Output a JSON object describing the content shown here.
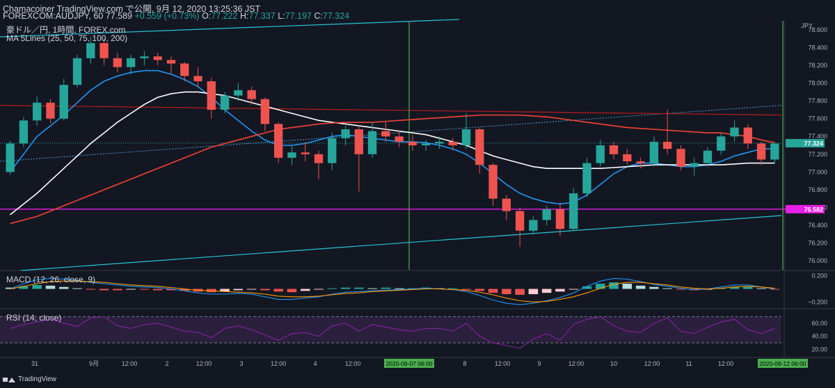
{
  "header": {
    "line1": "Chamacoiner TradingView.com で公開, 9月 12, 2020 13:25:36 JST",
    "symbol": "FOREXCOM:AUDJPY, 60",
    "last": "77.589",
    "change": "+0.559 (+0.73%)",
    "o_label": "O:",
    "o_val": "77.222",
    "h_label": "H:",
    "h_val": "77.337",
    "l_label": "L:",
    "l_val": "77.197",
    "c_label": "C:",
    "c_val": "77.324"
  },
  "legend": {
    "instrument": "豪ドル／円, 1時間, FOREX.com",
    "ma": "MA 5Lines (25, 50, 75, 100, 200)"
  },
  "panes": {
    "macd_label": "MACD (12, 26, close, 9)",
    "rsi_label": "RSI (14, close)"
  },
  "footer": {
    "brand": "TradingView"
  },
  "colors": {
    "background": "#131722",
    "up": "#26a69a",
    "down": "#ef5350",
    "ma_blue": "#2196f3",
    "ma_white": "#ffffff",
    "ma_red": "#f44336",
    "support_magenta": "#e91ee9",
    "channel_teal": "#26c6da",
    "vline_green": "#4caf50",
    "rsi_purple": "#9c27b0"
  },
  "chart_data": [
    {
      "type": "candlestick",
      "pane": "price",
      "currency_label": "JPY",
      "ylim": [
        75.9,
        78.7
      ],
      "y_ticks": [
        "78.600",
        "78.400",
        "78.200",
        "78.000",
        "77.800",
        "77.600",
        "77.400",
        "77.200",
        "77.000",
        "76.800",
        "76.600",
        "76.400",
        "76.200",
        "76.000"
      ],
      "x_ticks": [
        "31",
        "9月",
        "12:00",
        "2",
        "12:00",
        "3",
        "12:00",
        "4",
        "12:00",
        "2020-09-07 06:00",
        "8",
        "12:00",
        "9",
        "12:00",
        "10",
        "12:00",
        "11",
        "12:00",
        "2020-09-12 06:00"
      ],
      "price_labels": {
        "last": "77.324",
        "support": "76.582"
      },
      "horizontal_levels": {
        "support": 76.582,
        "resistance": 77.75
      },
      "ohlc_hourly": [
        [
          77.0,
          77.35,
          76.97,
          77.32
        ],
        [
          77.32,
          77.62,
          77.28,
          77.58
        ],
        [
          77.58,
          77.85,
          77.52,
          77.78
        ],
        [
          77.78,
          77.82,
          77.55,
          77.6
        ],
        [
          77.6,
          78.05,
          77.58,
          77.98
        ],
        [
          77.98,
          78.32,
          77.95,
          78.28
        ],
        [
          78.28,
          78.52,
          78.22,
          78.45
        ],
        [
          78.45,
          78.5,
          78.2,
          78.28
        ],
        [
          78.28,
          78.34,
          78.12,
          78.18
        ],
        [
          78.18,
          78.32,
          78.1,
          78.28
        ],
        [
          78.28,
          78.36,
          78.2,
          78.3
        ],
        [
          78.3,
          78.34,
          78.2,
          78.26
        ],
        [
          78.26,
          78.3,
          78.1,
          78.22
        ],
        [
          78.22,
          78.24,
          78.02,
          78.08
        ],
        [
          78.08,
          78.18,
          77.96,
          78.02
        ],
        [
          78.02,
          78.06,
          77.6,
          77.7
        ],
        [
          77.7,
          77.9,
          77.66,
          77.86
        ],
        [
          77.86,
          78.0,
          77.8,
          77.92
        ],
        [
          77.92,
          77.96,
          77.76,
          77.82
        ],
        [
          77.82,
          77.84,
          77.46,
          77.54
        ],
        [
          77.54,
          77.56,
          77.1,
          77.16
        ],
        [
          77.16,
          77.3,
          77.08,
          77.22
        ],
        [
          77.22,
          77.34,
          77.12,
          77.2
        ],
        [
          77.2,
          77.24,
          76.92,
          77.1
        ],
        [
          77.1,
          77.44,
          77.02,
          77.38
        ],
        [
          77.38,
          77.52,
          77.3,
          77.48
        ],
        [
          77.48,
          77.52,
          76.78,
          77.2
        ],
        [
          77.2,
          77.56,
          77.16,
          77.46
        ],
        [
          77.46,
          77.56,
          77.34,
          77.4
        ],
        [
          77.4,
          77.46,
          77.28,
          77.34
        ],
        [
          77.34,
          77.42,
          77.24,
          77.3
        ],
        [
          77.3,
          77.36,
          77.24,
          77.32
        ],
        [
          77.32,
          77.4,
          77.26,
          77.34
        ],
        [
          77.34,
          77.38,
          77.24,
          77.3
        ],
        [
          77.3,
          77.66,
          77.26,
          77.48
        ],
        [
          77.48,
          77.5,
          76.98,
          77.08
        ],
        [
          77.08,
          77.1,
          76.62,
          76.7
        ],
        [
          76.7,
          76.74,
          76.46,
          76.56
        ],
        [
          76.56,
          76.6,
          76.16,
          76.34
        ],
        [
          76.34,
          76.5,
          76.3,
          76.46
        ],
        [
          76.46,
          76.62,
          76.4,
          76.58
        ],
        [
          76.58,
          76.66,
          76.28,
          76.36
        ],
        [
          76.36,
          76.82,
          76.34,
          76.76
        ],
        [
          76.76,
          77.16,
          76.72,
          77.1
        ],
        [
          77.1,
          77.36,
          77.06,
          77.3
        ],
        [
          77.3,
          77.34,
          77.14,
          77.2
        ],
        [
          77.2,
          77.26,
          77.08,
          77.12
        ],
        [
          77.12,
          77.16,
          77.04,
          77.1
        ],
        [
          77.1,
          77.4,
          77.06,
          77.34
        ],
        [
          77.34,
          77.7,
          77.2,
          77.26
        ],
        [
          77.26,
          77.3,
          77.02,
          77.06
        ],
        [
          77.06,
          77.16,
          76.96,
          77.1
        ],
        [
          77.1,
          77.28,
          77.06,
          77.24
        ],
        [
          77.24,
          77.44,
          77.2,
          77.4
        ],
        [
          77.4,
          77.58,
          77.34,
          77.5
        ],
        [
          77.5,
          77.54,
          77.26,
          77.32
        ],
        [
          77.32,
          77.34,
          77.08,
          77.14
        ],
        [
          77.14,
          77.34,
          77.1,
          77.32
        ]
      ],
      "series": [
        {
          "name": "MA 25",
          "color": "blue",
          "values": [
            77.0,
            77.2,
            77.4,
            77.52,
            77.64,
            77.78,
            77.92,
            78.02,
            78.08,
            78.12,
            78.14,
            78.14,
            78.1,
            78.04,
            77.96,
            77.84,
            77.7,
            77.58,
            77.46,
            77.36,
            77.3,
            77.3,
            77.32,
            77.36,
            77.4,
            77.42,
            77.4,
            77.38,
            77.36,
            77.34,
            77.34,
            77.33,
            77.3,
            77.26,
            77.2,
            77.1,
            76.98,
            76.86,
            76.76,
            76.7,
            76.66,
            76.64,
            76.66,
            76.74,
            76.86,
            76.98,
            77.06,
            77.1,
            77.1,
            77.08,
            77.06,
            77.06,
            77.08,
            77.12,
            77.18,
            77.22,
            77.26,
            77.26
          ]
        },
        {
          "name": "MA 100",
          "color": "white",
          "values": [
            76.52,
            76.64,
            76.76,
            76.9,
            77.04,
            77.18,
            77.32,
            77.44,
            77.56,
            77.66,
            77.76,
            77.84,
            77.88,
            77.9,
            77.9,
            77.88,
            77.86,
            77.82,
            77.78,
            77.74,
            77.7,
            77.66,
            77.62,
            77.58,
            77.56,
            77.54,
            77.52,
            77.5,
            77.48,
            77.46,
            77.44,
            77.42,
            77.38,
            77.34,
            77.3,
            77.24,
            77.18,
            77.14,
            77.1,
            77.06,
            77.04,
            77.04,
            77.04,
            77.04,
            77.04,
            77.05,
            77.06,
            77.07,
            77.08,
            77.08,
            77.08,
            77.08,
            77.08,
            77.08,
            77.09,
            77.1,
            77.1,
            77.1
          ]
        },
        {
          "name": "MA 200",
          "color": "red",
          "values": [
            76.42,
            76.46,
            76.5,
            76.56,
            76.62,
            76.68,
            76.74,
            76.8,
            76.86,
            76.92,
            76.98,
            77.04,
            77.1,
            77.16,
            77.22,
            77.28,
            77.32,
            77.36,
            77.4,
            77.44,
            77.48,
            77.5,
            77.52,
            77.54,
            77.55,
            77.56,
            77.56,
            77.56,
            77.57,
            77.58,
            77.59,
            77.6,
            77.61,
            77.62,
            77.63,
            77.64,
            77.64,
            77.64,
            77.64,
            77.63,
            77.62,
            77.6,
            77.58,
            77.56,
            77.54,
            77.52,
            77.5,
            77.49,
            77.48,
            77.47,
            77.46,
            77.45,
            77.44,
            77.44,
            77.42,
            77.4,
            77.36,
            77.33
          ]
        }
      ]
    },
    {
      "type": "bar+line",
      "pane": "macd",
      "title": "MACD (12, 26, close, 9)",
      "ylim": [
        -0.26,
        0.26
      ],
      "y_ticks": [
        "0.200",
        "−0.200"
      ],
      "histogram": [
        0.02,
        0.04,
        0.06,
        0.05,
        0.03,
        0.01,
        -0.01,
        -0.02,
        -0.02,
        -0.01,
        -0.01,
        -0.02,
        -0.02,
        -0.03,
        -0.04,
        -0.05,
        -0.04,
        -0.02,
        -0.01,
        -0.02,
        -0.04,
        -0.05,
        -0.03,
        -0.01,
        0.01,
        0.02,
        0.02,
        0.01,
        0.02,
        0.01,
        0.01,
        0.02,
        0.01,
        0.01,
        -0.01,
        -0.03,
        -0.06,
        -0.08,
        -0.09,
        -0.08,
        -0.06,
        -0.04,
        -0.01,
        0.04,
        0.08,
        0.1,
        0.08,
        0.05,
        0.03,
        0.01,
        -0.01,
        -0.02,
        -0.01,
        0.01,
        0.03,
        0.03,
        0.01,
        -0.01
      ],
      "series": [
        {
          "name": "MACD",
          "color": "blue",
          "values": [
            0.0,
            0.08,
            0.14,
            0.16,
            0.15,
            0.13,
            0.1,
            0.08,
            0.06,
            0.04,
            0.03,
            0.02,
            0.0,
            -0.03,
            -0.06,
            -0.08,
            -0.08,
            -0.07,
            -0.08,
            -0.12,
            -0.16,
            -0.16,
            -0.14,
            -0.12,
            -0.08,
            -0.05,
            -0.04,
            -0.03,
            -0.02,
            -0.01,
            0.0,
            0.01,
            0.0,
            -0.01,
            -0.04,
            -0.1,
            -0.17,
            -0.22,
            -0.24,
            -0.22,
            -0.18,
            -0.13,
            -0.06,
            0.04,
            0.12,
            0.16,
            0.15,
            0.11,
            0.07,
            0.04,
            0.01,
            -0.01,
            0.0,
            0.03,
            0.06,
            0.06,
            0.03,
            0.0
          ]
        },
        {
          "name": "Signal",
          "color": "orange",
          "values": [
            0.0,
            0.04,
            0.08,
            0.11,
            0.12,
            0.12,
            0.11,
            0.1,
            0.08,
            0.06,
            0.05,
            0.04,
            0.02,
            0.0,
            -0.02,
            -0.03,
            -0.04,
            -0.05,
            -0.06,
            -0.08,
            -0.11,
            -0.12,
            -0.12,
            -0.11,
            -0.09,
            -0.07,
            -0.06,
            -0.04,
            -0.03,
            -0.02,
            -0.01,
            0.0,
            0.0,
            -0.01,
            -0.02,
            -0.05,
            -0.09,
            -0.14,
            -0.18,
            -0.2,
            -0.19,
            -0.16,
            -0.12,
            -0.06,
            0.01,
            0.07,
            0.1,
            0.1,
            0.08,
            0.06,
            0.03,
            0.01,
            0.0,
            0.01,
            0.03,
            0.04,
            0.03,
            0.01
          ]
        }
      ]
    },
    {
      "type": "line",
      "pane": "rsi",
      "title": "RSI (14, close)",
      "ylim": [
        10,
        80
      ],
      "y_ticks": [
        "60.00",
        "40.00",
        "20.00"
      ],
      "bands": [
        70,
        30
      ],
      "series": [
        {
          "name": "RSI",
          "color": "purple",
          "values": [
            52,
            58,
            62,
            66,
            60,
            55,
            68,
            70,
            56,
            52,
            58,
            60,
            54,
            48,
            46,
            38,
            52,
            56,
            50,
            42,
            34,
            44,
            46,
            40,
            56,
            60,
            48,
            58,
            54,
            50,
            48,
            52,
            52,
            48,
            60,
            40,
            30,
            26,
            22,
            36,
            44,
            34,
            58,
            66,
            70,
            56,
            48,
            46,
            60,
            68,
            48,
            44,
            54,
            62,
            66,
            50,
            44,
            52
          ]
        }
      ]
    }
  ]
}
